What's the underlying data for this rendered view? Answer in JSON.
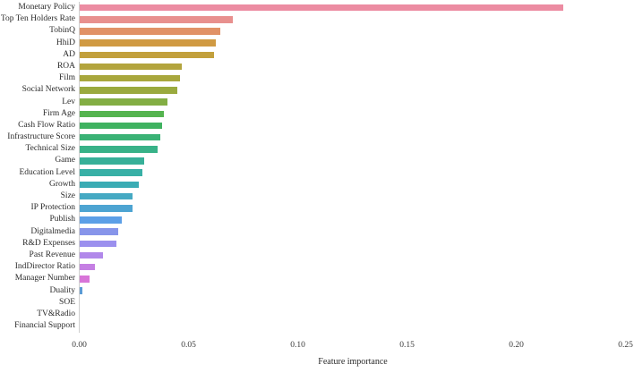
{
  "chart_data": {
    "type": "bar",
    "orientation": "horizontal",
    "title": "",
    "xlabel": "Feature importance",
    "ylabel": "",
    "xlim": [
      0,
      0.25
    ],
    "grid": false,
    "legend": null,
    "x_tick_labels": [
      "0.00",
      "0.05",
      "0.10",
      "0.15",
      "0.20",
      "0.25"
    ],
    "x_tick_values": [
      0,
      0.05,
      0.1,
      0.15,
      0.2,
      0.25
    ],
    "categories": [
      "Monetary Policy",
      "Top Ten Holders Rate",
      "TobinQ",
      "HhiD",
      "AD",
      "ROA",
      "Film",
      "Social Network",
      "Lev",
      "Firm Age",
      "Cash Flow Ratio",
      "Infrastructure Score",
      "Technical Size",
      "Game",
      "Education Level",
      "Growth",
      "Size",
      "IP Protection",
      "Publish",
      "Digitalmedia",
      "R&D Expenses",
      "Past Revenue",
      "IndDirector Ratio",
      "Manager Number",
      "Duality",
      "SOE",
      "TV&Radio",
      "Financial Support"
    ],
    "values": [
      0.2215,
      0.0702,
      0.0645,
      0.0622,
      0.0615,
      0.0469,
      0.0459,
      0.0447,
      0.0402,
      0.0384,
      0.0379,
      0.0368,
      0.0357,
      0.0296,
      0.0285,
      0.0271,
      0.0242,
      0.024,
      0.0193,
      0.0175,
      0.0166,
      0.0108,
      0.0069,
      0.0047,
      0.0012,
      0.0,
      0.0,
      0.0
    ],
    "bar_colors": [
      "#ec8ca2",
      "#e8908e",
      "#e19267",
      "#d09a43",
      "#c2a03d",
      "#b3a43d",
      "#a8a73d",
      "#9aaa3e",
      "#83ae44",
      "#55b44f",
      "#3fb260",
      "#3ab275",
      "#38b288",
      "#37b098",
      "#38b0a6",
      "#3aacb4",
      "#45a9c3",
      "#4da4d2",
      "#5c9fe7",
      "#8795ea",
      "#9b90ee",
      "#b188ea",
      "#c57fe3",
      "#d875d8",
      "#5b9bd5",
      "#e470c4",
      "#eb6cab",
      "#f0708e"
    ]
  },
  "style": {
    "spine_color": "#cfcfcf",
    "text_color": "#2b2b2b",
    "background": "#ffffff"
  }
}
